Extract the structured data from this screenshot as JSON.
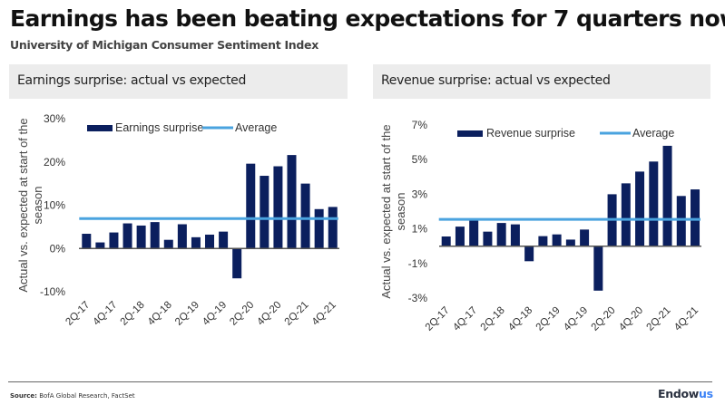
{
  "header": {
    "title": "Earnings has been beating expectations for 7 quarters now",
    "subtitle": "University of Michigan Consumer Sentiment Index"
  },
  "panels": {
    "left_title": "Earnings surprise: actual vs expected",
    "right_title": "Revenue surprise: actual vs expected"
  },
  "footer": {
    "source_label": "Source:",
    "source_text": "BofA Global Research, FactSet",
    "logo_part1": "Endow",
    "logo_part2": "us"
  },
  "colors": {
    "bar": "#0b1f5e",
    "average": "#4aa3df",
    "axis": "#555555"
  },
  "chart_data": [
    {
      "type": "bar",
      "title": "Earnings surprise: actual vs expected",
      "xlabel": "",
      "ylabel": "Actual vs. expected at start of the season",
      "categories": [
        "2Q-17",
        "3Q-17",
        "4Q-17",
        "1Q-18",
        "2Q-18",
        "3Q-18",
        "4Q-18",
        "1Q-19",
        "2Q-19",
        "3Q-19",
        "4Q-19",
        "1Q-20",
        "2Q-20",
        "3Q-20",
        "4Q-20",
        "1Q-21",
        "2Q-21",
        "3Q-21",
        "4Q-21"
      ],
      "x_tick_labels": [
        "2Q-17",
        "4Q-17",
        "2Q-18",
        "4Q-18",
        "2Q-19",
        "4Q-19",
        "2Q-20",
        "4Q-20",
        "2Q-21",
        "4Q-21"
      ],
      "series": [
        {
          "name": "Earnings surprise",
          "kind": "bar",
          "values": [
            3.4,
            1.4,
            3.7,
            5.8,
            5.3,
            6.1,
            2.0,
            5.6,
            2.6,
            3.2,
            3.9,
            -6.9,
            19.6,
            16.8,
            19.0,
            21.6,
            15.0,
            9.1,
            9.6
          ]
        },
        {
          "name": "Average",
          "kind": "hline",
          "value": 6.9
        }
      ],
      "ylim": [
        -10,
        30
      ],
      "y_ticks": [
        -10,
        0,
        10,
        20,
        30
      ],
      "y_tick_labels": [
        "-10%",
        "0%",
        "10%",
        "20%",
        "30%"
      ],
      "legend": [
        "Earnings surprise",
        "Average"
      ],
      "legend_position": "top",
      "grid": false
    },
    {
      "type": "bar",
      "title": "Revenue surprise: actual vs expected",
      "xlabel": "",
      "ylabel": "Actual vs. expected at start of the season",
      "categories": [
        "2Q-17",
        "3Q-17",
        "4Q-17",
        "1Q-18",
        "2Q-18",
        "3Q-18",
        "4Q-18",
        "1Q-19",
        "2Q-19",
        "3Q-19",
        "4Q-19",
        "1Q-20",
        "2Q-20",
        "3Q-20",
        "4Q-20",
        "1Q-21",
        "2Q-21",
        "3Q-21",
        "4Q-21"
      ],
      "x_tick_labels": [
        "2Q-17",
        "4Q-17",
        "2Q-18",
        "4Q-18",
        "2Q-19",
        "4Q-19",
        "2Q-20",
        "4Q-20",
        "2Q-21",
        "4Q-21"
      ],
      "series": [
        {
          "name": "Revenue surprise",
          "kind": "bar",
          "values": [
            0.56,
            1.13,
            1.48,
            0.84,
            1.34,
            1.26,
            -0.87,
            0.58,
            0.68,
            0.38,
            0.96,
            -2.57,
            3.0,
            3.63,
            4.31,
            4.89,
            5.8,
            2.9,
            3.28
          ]
        },
        {
          "name": "Average",
          "kind": "hline",
          "value": 1.55
        }
      ],
      "ylim": [
        -3,
        7
      ],
      "y_ticks": [
        -3,
        -1,
        1,
        3,
        5,
        7
      ],
      "y_tick_labels": [
        "-3%",
        "-1%",
        "1%",
        "3%",
        "5%",
        "7%"
      ],
      "legend": [
        "Revenue surprise",
        "Average"
      ],
      "legend_position": "top",
      "grid": false
    }
  ]
}
